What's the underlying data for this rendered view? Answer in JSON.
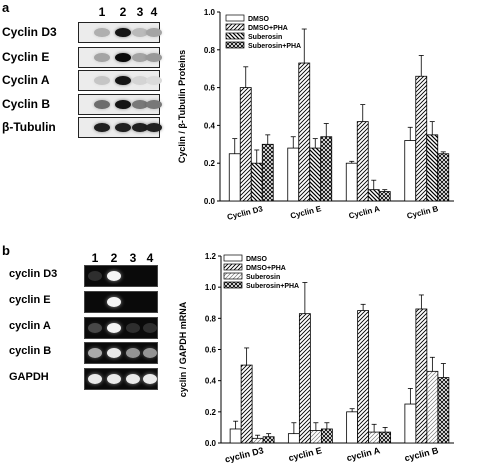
{
  "panel_a": {
    "letter": "a",
    "lanes": [
      "1",
      "2",
      "3",
      "4"
    ],
    "rows": [
      {
        "label": "Cyclin D3",
        "intensity": [
          0.25,
          0.95,
          0.2,
          0.3
        ]
      },
      {
        "label": "Cyclin E",
        "intensity": [
          0.3,
          1.0,
          0.3,
          0.35
        ]
      },
      {
        "label": "Cyclin A",
        "intensity": [
          0.15,
          0.95,
          0.08,
          0.05
        ]
      },
      {
        "label": "Cyclin B",
        "intensity": [
          0.55,
          0.95,
          0.5,
          0.5
        ]
      },
      {
        "label": "β-Tubulin",
        "intensity": [
          0.9,
          0.9,
          0.9,
          0.9
        ]
      }
    ]
  },
  "panel_b": {
    "letter": "b",
    "lanes": [
      "1",
      "2",
      "3",
      "4"
    ],
    "rows": [
      {
        "label": "cyclin D3",
        "intensity": [
          0.03,
          0.95,
          0.0,
          0.0
        ]
      },
      {
        "label": "cyclin E",
        "intensity": [
          0.0,
          0.95,
          0.0,
          0.0
        ]
      },
      {
        "label": "cyclin A",
        "intensity": [
          0.15,
          0.95,
          0.03,
          0.03
        ]
      },
      {
        "label": "cyclin B",
        "intensity": [
          0.6,
          0.9,
          0.5,
          0.5
        ]
      },
      {
        "label": "GAPDH",
        "intensity": [
          0.9,
          0.9,
          0.9,
          0.9
        ]
      }
    ]
  },
  "chart_data": [
    {
      "type": "bar",
      "categories": [
        "Cyclin D3",
        "Cyclin E",
        "Cyclin A",
        "Cyclin B"
      ],
      "series": [
        {
          "name": "DMSO",
          "values": [
            0.25,
            0.28,
            0.2,
            0.32
          ],
          "errors": [
            0.08,
            0.06,
            0.01,
            0.07
          ],
          "pattern": "white"
        },
        {
          "name": "DMSO+PHA",
          "values": [
            0.6,
            0.73,
            0.42,
            0.66
          ],
          "errors": [
            0.11,
            0.18,
            0.09,
            0.11
          ],
          "pattern": "hatch"
        },
        {
          "name": "Suberosin",
          "values": [
            0.2,
            0.28,
            0.06,
            0.35
          ],
          "errors": [
            0.07,
            0.05,
            0.05,
            0.07
          ],
          "pattern": "dense-hatch"
        },
        {
          "name": "Suberosin+PHA",
          "values": [
            0.3,
            0.34,
            0.05,
            0.25
          ],
          "errors": [
            0.05,
            0.07,
            0.01,
            0.01
          ],
          "pattern": "cross"
        }
      ],
      "xlabel": "",
      "ylabel": "Cyclin / β-Tubulin Proteins",
      "ylim": [
        0,
        1.0
      ],
      "yticks": [
        "0.0",
        "0.2",
        "0.4",
        "0.6",
        "0.8",
        "1.0"
      ],
      "legend": "top-left",
      "grid": false
    },
    {
      "type": "bar",
      "categories": [
        "cyclin D3",
        "cyclin E",
        "cyclin A",
        "cyclin B"
      ],
      "series": [
        {
          "name": "DMSO",
          "values": [
            0.09,
            0.06,
            0.2,
            0.25
          ],
          "errors": [
            0.05,
            0.07,
            0.02,
            0.1
          ],
          "pattern": "white"
        },
        {
          "name": "DMSO+PHA",
          "values": [
            0.5,
            0.83,
            0.85,
            0.86
          ],
          "errors": [
            0.11,
            0.2,
            0.04,
            0.09
          ],
          "pattern": "hatch"
        },
        {
          "name": "Suberosin",
          "values": [
            0.03,
            0.08,
            0.07,
            0.46
          ],
          "errors": [
            0.02,
            0.05,
            0.05,
            0.09
          ],
          "pattern": "light-hatch"
        },
        {
          "name": "Suberosin+PHA",
          "values": [
            0.04,
            0.09,
            0.07,
            0.42
          ],
          "errors": [
            0.02,
            0.04,
            0.03,
            0.09
          ],
          "pattern": "cross"
        }
      ],
      "xlabel": "",
      "ylabel": "cyclin / GAPDH mRNA",
      "ylim": [
        0,
        1.2
      ],
      "yticks": [
        "0.0",
        "0.2",
        "0.4",
        "0.6",
        "0.8",
        "1.0",
        "1.2"
      ],
      "legend": "top-left",
      "grid": false
    }
  ]
}
